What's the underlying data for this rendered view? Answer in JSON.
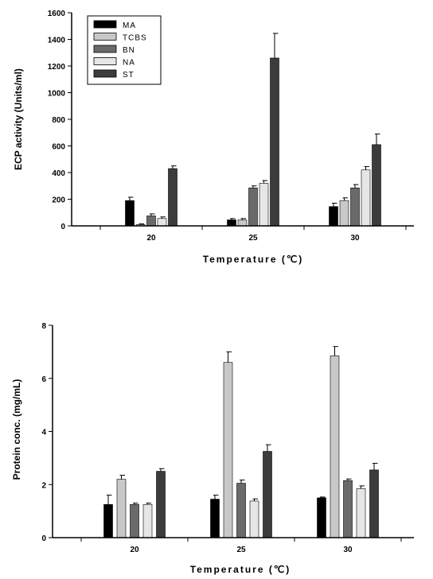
{
  "colors": {
    "MA": "#000000",
    "TCBS": "#c8c8c8",
    "BN": "#6a6a6a",
    "NA": "#e6e6e6",
    "ST": "#3c3c3c"
  },
  "chart_data": [
    {
      "type": "bar",
      "categories": [
        "20",
        "25",
        "30"
      ],
      "xlabel": "Temperature (℃)",
      "ylabel": "ECP activity (Units/ml)",
      "ylim": [
        0,
        1600
      ],
      "yticks": [
        "0",
        "200",
        "400",
        "600",
        "800",
        "1000",
        "1200",
        "1400",
        "1600"
      ],
      "legend": "top-left",
      "series": [
        {
          "name": "MA",
          "values": [
            190,
            45,
            145
          ],
          "errors": [
            25,
            10,
            25
          ]
        },
        {
          "name": "TCBS",
          "values": [
            10,
            45,
            190
          ],
          "errors": [
            5,
            10,
            20
          ]
        },
        {
          "name": "BN",
          "values": [
            75,
            285,
            285
          ],
          "errors": [
            15,
            15,
            25
          ]
        },
        {
          "name": "NA",
          "values": [
            55,
            320,
            420
          ],
          "errors": [
            12,
            20,
            25
          ]
        },
        {
          "name": "ST",
          "values": [
            430,
            1260,
            610
          ],
          "errors": [
            20,
            185,
            80
          ]
        }
      ]
    },
    {
      "type": "bar",
      "categories": [
        "20",
        "25",
        "30"
      ],
      "xlabel": "Temperature (℃)",
      "ylabel": "Protein conc. (mg/mL)",
      "ylim": [
        0,
        8
      ],
      "yticks": [
        "0",
        "2",
        "4",
        "6",
        "8"
      ],
      "series": [
        {
          "name": "MA",
          "values": [
            1.25,
            1.45,
            1.5
          ],
          "errors": [
            0.35,
            0.15,
            0.03
          ]
        },
        {
          "name": "TCBS",
          "values": [
            2.2,
            6.6,
            6.85
          ],
          "errors": [
            0.15,
            0.4,
            0.35
          ]
        },
        {
          "name": "BN",
          "values": [
            1.25,
            2.05,
            2.15
          ],
          "errors": [
            0.05,
            0.12,
            0.06
          ]
        },
        {
          "name": "NA",
          "values": [
            1.25,
            1.38,
            1.85
          ],
          "errors": [
            0.05,
            0.08,
            0.1
          ]
        },
        {
          "name": "ST",
          "values": [
            2.5,
            3.25,
            2.55
          ],
          "errors": [
            0.1,
            0.25,
            0.25
          ]
        }
      ]
    }
  ]
}
